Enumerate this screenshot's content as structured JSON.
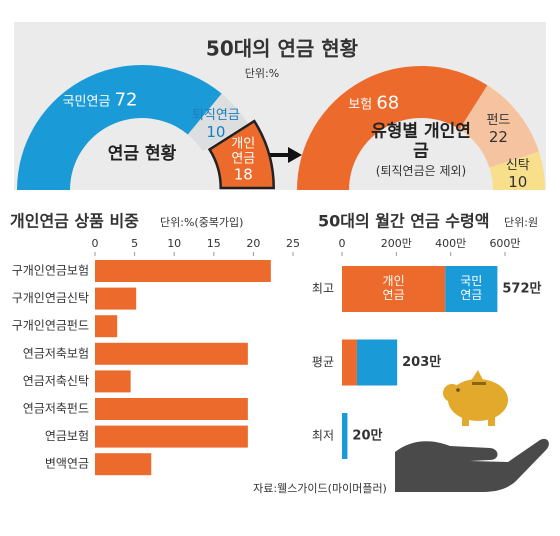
{
  "header": {
    "title": "50대의 연금 현황",
    "unit": "단위:%"
  },
  "source": "자료:웰스가이드(마이머플러)",
  "chart_data": [
    {
      "type": "donut",
      "center_label": "연금 현황",
      "categories": [
        "국민연금",
        "퇴직연금",
        "개인연금"
      ],
      "values": [
        72,
        10,
        18
      ],
      "colors": [
        "#1a9ad6",
        "#dcdedf",
        "#ec6a2c"
      ],
      "label_colors": [
        "#ffffff",
        "#1a7fc0",
        "#ffffff"
      ],
      "exploded": [
        false,
        false,
        true
      ]
    },
    {
      "type": "donut",
      "center_label": "유형별 개인연금",
      "center_note": "(퇴직연금은 제외)",
      "categories": [
        "보험",
        "펀드",
        "신탁"
      ],
      "values": [
        68,
        22,
        10
      ],
      "colors": [
        "#ec6a2c",
        "#f6c3a0",
        "#f7df8c"
      ],
      "label_colors": [
        "#ffffff",
        "#333333",
        "#333333"
      ],
      "exploded": [
        false,
        false,
        false
      ]
    },
    {
      "type": "hbar",
      "title": "개인연금 상품 비중",
      "unit": "단위:%(중복가입)",
      "categories": [
        "구개인연금보험",
        "구개인연금신탁",
        "구개인연금펀드",
        "연금저축보험",
        "연금저축신탁",
        "연금저축펀드",
        "연금보험",
        "변액연금"
      ],
      "values": [
        22.2,
        5.2,
        2.8,
        19.3,
        4.5,
        19.3,
        19.3,
        7.1
      ],
      "color": "#ec6a2c",
      "xlim": [
        0,
        25
      ],
      "xticks": [
        0,
        5,
        10,
        15,
        20,
        25
      ]
    },
    {
      "type": "stacked_hbar",
      "title": "50대의 월간 연금 수령액",
      "unit": "단위:원",
      "categories": [
        "최고",
        "평균",
        "최저"
      ],
      "series": [
        {
          "name": "개인연금",
          "color": "#ec6a2c",
          "values": [
            380,
            55,
            0
          ]
        },
        {
          "name": "국민연금",
          "color": "#1a9ad6",
          "values": [
            192,
            148,
            20
          ]
        }
      ],
      "totals": {
        "values": [
          572,
          203,
          20
        ],
        "value_labels": [
          "572만",
          "203만",
          "20만"
        ]
      },
      "xlim": [
        0,
        600
      ],
      "xticks": [
        0,
        {
          "value": 200,
          "label": "200만"
        },
        {
          "value": 400,
          "label": "400만"
        },
        {
          "value": 600,
          "label": "600만"
        }
      ]
    }
  ]
}
